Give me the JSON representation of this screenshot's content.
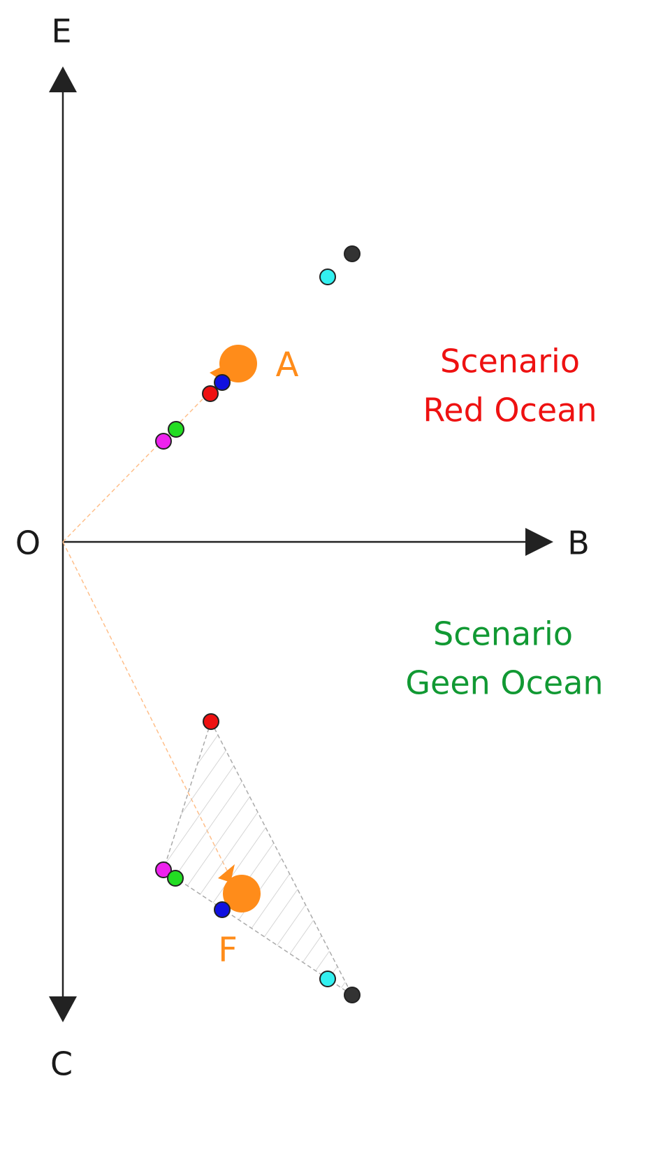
{
  "axes": {
    "up": "E",
    "right": "B",
    "down": "C",
    "origin": "O"
  },
  "points": {
    "upper": "A",
    "lower": "F"
  },
  "scenarios": [
    {
      "lines": [
        "Scenario",
        "Red Ocean"
      ]
    },
    {
      "lines": [
        "Scenario",
        "Geen Ocean"
      ]
    }
  ]
}
